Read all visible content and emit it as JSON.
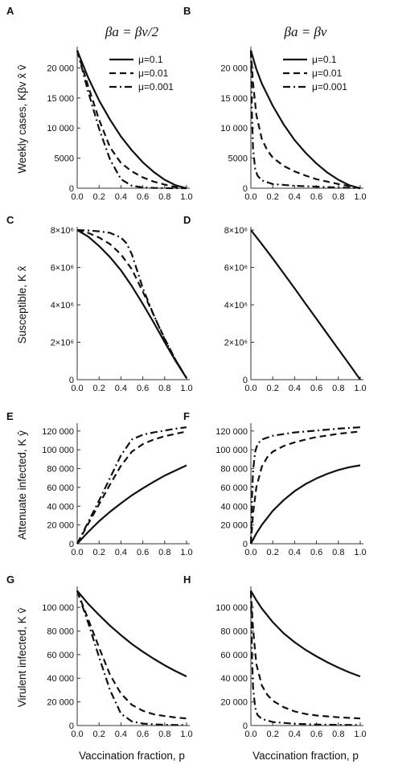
{
  "chart_data": {
    "type": "line",
    "columns": [
      {
        "title": "βa = βv/2",
        "condition": "half"
      },
      {
        "title": "βa = βv",
        "condition": "equal"
      }
    ],
    "legend": {
      "placement": "top-right",
      "entries": [
        "μ=0.1",
        "μ=0.01",
        "μ=0.001"
      ],
      "line_styles": [
        "solid",
        "dashed",
        "dash-dot"
      ]
    },
    "xlabel": "Vaccination fraction, p",
    "x_ticks": [
      "0.0",
      "0.2",
      "0.4",
      "0.6",
      "0.8",
      "1.0"
    ],
    "xlim": [
      0,
      1
    ],
    "rows": [
      {
        "ylabel": "Weekly cases, Kβv x̂ v̂",
        "ylim": [
          0,
          23000
        ],
        "y_ticks": [
          0,
          5000,
          10000,
          15000,
          20000
        ],
        "y_tick_labels": [
          "0",
          "5000",
          "10 000",
          "15 000",
          "20 000"
        ],
        "panels": [
          {
            "letter": "A",
            "series": [
              {
                "name": "μ=0.1",
                "style": "solid",
                "x": [
                  0,
                  0.1,
                  0.2,
                  0.3,
                  0.4,
                  0.5,
                  0.6,
                  0.7,
                  0.8,
                  0.9,
                  1.0
                ],
                "y": [
                  22900,
                  18400,
                  14600,
                  11400,
                  8600,
                  6300,
                  4300,
                  2700,
                  1400,
                  500,
                  0
                ]
              },
              {
                "name": "μ=0.01",
                "style": "dashed",
                "x": [
                  0,
                  0.1,
                  0.2,
                  0.3,
                  0.4,
                  0.5,
                  0.6,
                  0.7,
                  0.8,
                  0.9,
                  1.0
                ],
                "y": [
                  22900,
                  17000,
                  11400,
                  6800,
                  4200,
                  2800,
                  1800,
                  1100,
                  600,
                  200,
                  0
                ]
              },
              {
                "name": "μ=0.001",
                "style": "dash-dot",
                "x": [
                  0,
                  0.1,
                  0.2,
                  0.3,
                  0.4,
                  0.5,
                  0.6,
                  0.7,
                  0.8,
                  0.9,
                  1.0
                ],
                "y": [
                  22900,
                  16100,
                  9900,
                  4800,
                  1500,
                  400,
                  150,
                  60,
                  20,
                  5,
                  0
                ]
              }
            ]
          },
          {
            "letter": "B",
            "series": [
              {
                "name": "μ=0.1",
                "style": "solid",
                "x": [
                  0,
                  0.05,
                  0.1,
                  0.2,
                  0.3,
                  0.4,
                  0.5,
                  0.6,
                  0.7,
                  0.8,
                  0.9,
                  1.0
                ],
                "y": [
                  22900,
                  19800,
                  17400,
                  13700,
                  10600,
                  8000,
                  5900,
                  4100,
                  2600,
                  1400,
                  500,
                  0
                ]
              },
              {
                "name": "μ=0.01",
                "style": "dashed",
                "x": [
                  0,
                  0.02,
                  0.05,
                  0.1,
                  0.15,
                  0.2,
                  0.3,
                  0.4,
                  0.5,
                  0.6,
                  0.8,
                  1.0
                ],
                "y": [
                  22900,
                  17500,
                  12200,
                  8200,
                  6300,
                  5100,
                  3700,
                  2800,
                  2100,
                  1500,
                  700,
                  0
                ]
              },
              {
                "name": "μ=0.001",
                "style": "dash-dot",
                "x": [
                  0,
                  0.01,
                  0.02,
                  0.04,
                  0.06,
                  0.1,
                  0.2,
                  0.4,
                  0.6,
                  0.8,
                  1.0
                ],
                "y": [
                  22900,
                  12000,
                  6500,
                  3200,
                  2100,
                  1300,
                  700,
                  400,
                  250,
                  120,
                  0
                ]
              }
            ]
          }
        ]
      },
      {
        "ylabel": "Susceptible, K x̂",
        "ylim": [
          0,
          8000000
        ],
        "y_ticks": [
          0,
          2000000,
          4000000,
          6000000,
          8000000
        ],
        "y_tick_labels": [
          "0",
          "2×10⁶",
          "4×10⁶",
          "6×10⁶",
          "8×10⁶"
        ],
        "panels": [
          {
            "letter": "C",
            "series": [
              {
                "name": "μ=0.1",
                "style": "solid",
                "x": [
                  0,
                  0.1,
                  0.2,
                  0.3,
                  0.4,
                  0.5,
                  0.6,
                  0.7,
                  0.8,
                  0.9,
                  1.0
                ],
                "y": [
                  8000000,
                  7650000,
                  7150000,
                  6550000,
                  5850000,
                  5000000,
                  4050000,
                  3050000,
                  2000000,
                  1000000,
                  80000
                ]
              },
              {
                "name": "μ=0.01",
                "style": "dashed",
                "x": [
                  0,
                  0.1,
                  0.2,
                  0.3,
                  0.4,
                  0.5,
                  0.6,
                  0.7,
                  0.8,
                  0.9,
                  1.0
                ],
                "y": [
                  8000000,
                  7850000,
                  7600000,
                  7250000,
                  6700000,
                  5900000,
                  4700000,
                  3450000,
                  2200000,
                  1050000,
                  80000
                ]
              },
              {
                "name": "μ=0.001",
                "style": "dash-dot",
                "x": [
                  0,
                  0.1,
                  0.2,
                  0.3,
                  0.4,
                  0.45,
                  0.5,
                  0.55,
                  0.6,
                  0.7,
                  0.8,
                  0.9,
                  1.0
                ],
                "y": [
                  8000000,
                  7980000,
                  7930000,
                  7850000,
                  7600000,
                  7300000,
                  6700000,
                  5800000,
                  4900000,
                  3450000,
                  2150000,
                  1050000,
                  80000
                ]
              }
            ]
          },
          {
            "letter": "D",
            "series": [
              {
                "name": "μ=0.1",
                "style": "solid",
                "x": [
                  0,
                  0.1,
                  0.2,
                  0.3,
                  0.4,
                  0.5,
                  0.6,
                  0.7,
                  0.8,
                  0.9,
                  1.0
                ],
                "y": [
                  8000000,
                  7250000,
                  6480000,
                  5680000,
                  4880000,
                  4060000,
                  3250000,
                  2440000,
                  1630000,
                  820000,
                  0
                ]
              }
            ]
          }
        ]
      },
      {
        "ylabel": "Attenuate infected, K ŷ",
        "ylim": [
          0,
          125000
        ],
        "y_ticks": [
          0,
          20000,
          40000,
          60000,
          80000,
          100000,
          120000
        ],
        "y_tick_labels": [
          "0",
          "20 000",
          "40 000",
          "60 000",
          "80 000",
          "100 000",
          "120 000"
        ],
        "panels": [
          {
            "letter": "E",
            "series": [
              {
                "name": "μ=0.1",
                "style": "solid",
                "x": [
                  0,
                  0.1,
                  0.2,
                  0.3,
                  0.4,
                  0.5,
                  0.6,
                  0.7,
                  0.8,
                  0.9,
                  1.0
                ],
                "y": [
                  0,
                  12500,
                  24000,
                  34000,
                  43000,
                  51500,
                  59000,
                  66000,
                  72500,
                  78000,
                  83500
                ]
              },
              {
                "name": "μ=0.01",
                "style": "dashed",
                "x": [
                  0,
                  0.1,
                  0.2,
                  0.3,
                  0.4,
                  0.5,
                  0.6,
                  0.7,
                  0.8,
                  0.9,
                  1.0
                ],
                "y": [
                  0,
                  21000,
                  42000,
                  63000,
                  83000,
                  98000,
                  106000,
                  111000,
                  114500,
                  117000,
                  119500
                ]
              },
              {
                "name": "μ=0.001",
                "style": "dash-dot",
                "x": [
                  0,
                  0.1,
                  0.2,
                  0.3,
                  0.4,
                  0.5,
                  0.6,
                  0.7,
                  0.8,
                  0.9,
                  1.0
                ],
                "y": [
                  0,
                  23000,
                  46000,
                  70000,
                  94000,
                  111000,
                  116000,
                  118500,
                  120500,
                  122500,
                  124000
                ]
              }
            ]
          },
          {
            "letter": "F",
            "series": [
              {
                "name": "μ=0.1",
                "style": "solid",
                "x": [
                  0,
                  0.05,
                  0.1,
                  0.2,
                  0.3,
                  0.4,
                  0.5,
                  0.6,
                  0.7,
                  0.8,
                  0.9,
                  1.0
                ],
                "y": [
                  0,
                  11000,
                  20000,
                  35000,
                  46500,
                  56000,
                  63500,
                  69500,
                  74500,
                  78500,
                  81500,
                  83500
                ]
              },
              {
                "name": "μ=0.01",
                "style": "dashed",
                "x": [
                  0,
                  0.02,
                  0.05,
                  0.1,
                  0.15,
                  0.2,
                  0.3,
                  0.4,
                  0.5,
                  0.6,
                  0.8,
                  1.0
                ],
                "y": [
                  0,
                  32000,
                  60000,
                  82000,
                  92000,
                  98000,
                  104000,
                  108000,
                  111000,
                  113500,
                  117000,
                  119500
                ]
              },
              {
                "name": "μ=0.001",
                "style": "dash-dot",
                "x": [
                  0,
                  0.01,
                  0.02,
                  0.04,
                  0.06,
                  0.1,
                  0.2,
                  0.4,
                  0.6,
                  0.8,
                  1.0
                ],
                "y": [
                  0,
                  50000,
                  78000,
                  98000,
                  106000,
                  111000,
                  115000,
                  118500,
                  120500,
                  122500,
                  124000
                ]
              }
            ]
          }
        ]
      },
      {
        "ylabel": "Virulent infected, K v̂",
        "ylim": [
          0,
          115000
        ],
        "y_ticks": [
          0,
          20000,
          40000,
          60000,
          80000,
          100000
        ],
        "y_tick_labels": [
          "0",
          "20 000",
          "40 000",
          "60 000",
          "80 000",
          "100 000"
        ],
        "panels": [
          {
            "letter": "G",
            "series": [
              {
                "name": "μ=0.1",
                "style": "solid",
                "x": [
                  0,
                  0.1,
                  0.2,
                  0.3,
                  0.4,
                  0.5,
                  0.6,
                  0.7,
                  0.8,
                  0.9,
                  1.0
                ],
                "y": [
                  114000,
                  103000,
                  93500,
                  84500,
                  76500,
                  69000,
                  62500,
                  56500,
                  51000,
                  46000,
                  41500
                ]
              },
              {
                "name": "μ=0.01",
                "style": "dashed",
                "x": [
                  0,
                  0.1,
                  0.2,
                  0.3,
                  0.4,
                  0.5,
                  0.6,
                  0.7,
                  0.8,
                  0.9,
                  1.0
                ],
                "y": [
                  114000,
                  90000,
                  66000,
                  43000,
                  27000,
                  17500,
                  12500,
                  9500,
                  8000,
                  6800,
                  6000
                ]
              },
              {
                "name": "μ=0.001",
                "style": "dash-dot",
                "x": [
                  0,
                  0.1,
                  0.2,
                  0.3,
                  0.4,
                  0.5,
                  0.6,
                  0.7,
                  0.8,
                  0.9,
                  1.0
                ],
                "y": [
                  114000,
                  87000,
                  58000,
                  30000,
                  10000,
                  3500,
                  1600,
                  1000,
                  700,
                  500,
                  400
                ]
              }
            ]
          },
          {
            "letter": "H",
            "series": [
              {
                "name": "μ=0.1",
                "style": "solid",
                "x": [
                  0,
                  0.05,
                  0.1,
                  0.2,
                  0.3,
                  0.4,
                  0.5,
                  0.6,
                  0.7,
                  0.8,
                  0.9,
                  1.0
                ],
                "y": [
                  114000,
                  106000,
                  99000,
                  87500,
                  78000,
                  70500,
                  64000,
                  58500,
                  53500,
                  49000,
                  45000,
                  41500
                ]
              },
              {
                "name": "μ=0.01",
                "style": "dashed",
                "x": [
                  0,
                  0.02,
                  0.05,
                  0.1,
                  0.15,
                  0.2,
                  0.3,
                  0.4,
                  0.5,
                  0.6,
                  0.8,
                  1.0
                ],
                "y": [
                  114000,
                  82000,
                  52000,
                  34000,
                  26000,
                  21000,
                  15500,
                  12000,
                  9800,
                  8500,
                  7000,
                  6000
                ]
              },
              {
                "name": "μ=0.001",
                "style": "dash-dot",
                "x": [
                  0,
                  0.01,
                  0.02,
                  0.04,
                  0.06,
                  0.1,
                  0.2,
                  0.4,
                  0.6,
                  0.8,
                  1.0
                ],
                "y": [
                  114000,
                  60000,
                  32000,
                  15000,
                  9000,
                  5500,
                  3000,
                  1500,
                  900,
                  600,
                  400
                ]
              }
            ]
          }
        ]
      }
    ]
  }
}
